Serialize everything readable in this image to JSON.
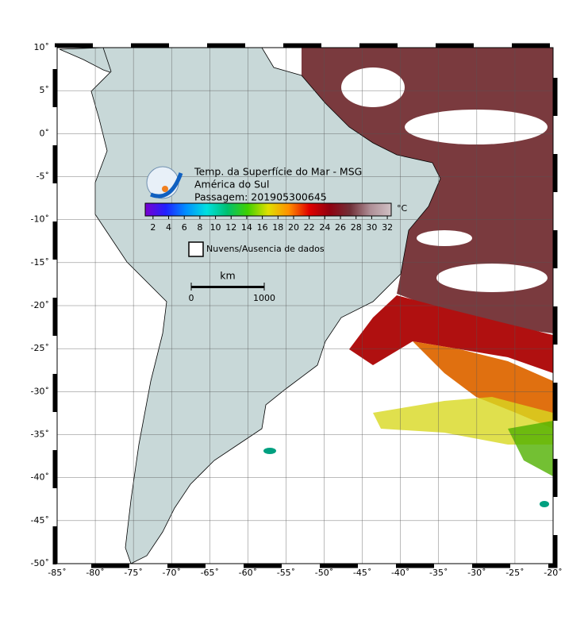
{
  "map": {
    "title_lines": [
      "Temp. da Superfície do Mar - MSG",
      "América do Sul",
      "Passagem: 201905300645"
    ],
    "xlim": [
      -85,
      -20
    ],
    "ylim": [
      -50,
      10
    ],
    "xticks": [
      {
        "value": -85,
        "label": "-85˚"
      },
      {
        "value": -80,
        "label": "-80˚"
      },
      {
        "value": -75,
        "label": "-75˚"
      },
      {
        "value": -70,
        "label": "-70˚"
      },
      {
        "value": -65,
        "label": "-65˚"
      },
      {
        "value": -60,
        "label": "-60˚"
      },
      {
        "value": -55,
        "label": "-55˚"
      },
      {
        "value": -50,
        "label": "-50˚"
      },
      {
        "value": -45,
        "label": "-45˚"
      },
      {
        "value": -40,
        "label": "-40˚"
      },
      {
        "value": -35,
        "label": "-35˚"
      },
      {
        "value": -30,
        "label": "-30˚"
      },
      {
        "value": -25,
        "label": "-25˚"
      },
      {
        "value": -20,
        "label": "-20˚"
      }
    ],
    "yticks": [
      {
        "value": 10,
        "label": "10˚"
      },
      {
        "value": 5,
        "label": "5˚"
      },
      {
        "value": 0,
        "label": "0˚"
      },
      {
        "value": -5,
        "label": "-5˚"
      },
      {
        "value": -10,
        "label": "-10˚"
      },
      {
        "value": -15,
        "label": "-15˚"
      },
      {
        "value": -20,
        "label": "-20˚"
      },
      {
        "value": -25,
        "label": "-25˚"
      },
      {
        "value": -30,
        "label": "-30˚"
      },
      {
        "value": -35,
        "label": "-35˚"
      },
      {
        "value": -40,
        "label": "-40˚"
      },
      {
        "value": -45,
        "label": "-45˚"
      },
      {
        "value": -50,
        "label": "-50˚"
      }
    ],
    "grid": true,
    "colorbar": {
      "lim": [
        1,
        32.5
      ],
      "ticks": [
        2,
        4,
        6,
        8,
        10,
        12,
        14,
        16,
        18,
        20,
        22,
        24,
        26,
        28,
        30,
        32
      ],
      "unit": "°C",
      "colors": [
        "#7a00d0",
        "#2020ff",
        "#0090ff",
        "#00e0e0",
        "#00c070",
        "#40d000",
        "#e0e000",
        "#ff9000",
        "#e00000",
        "#900010",
        "#703038",
        "#b09098",
        "#d0c0c4"
      ]
    },
    "legend": {
      "label": "Nuvens/Ausencia de dados"
    },
    "scale_bar": {
      "unit": "km",
      "ticks": [
        0,
        1000
      ]
    }
  }
}
